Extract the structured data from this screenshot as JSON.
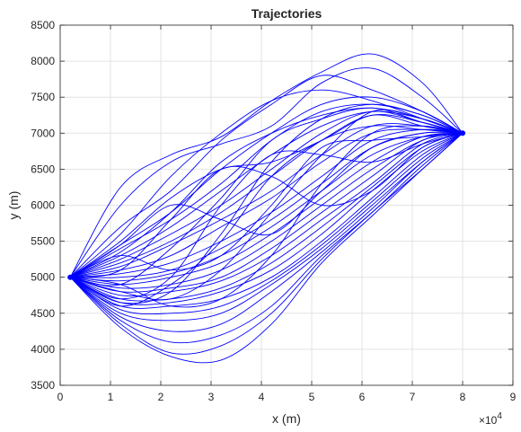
{
  "chart_data": {
    "type": "line",
    "title": "Trajectories",
    "xlabel": "x (m)",
    "ylabel": "y (m)",
    "x_exponent_label": "×10",
    "x_exponent_power": "4",
    "xlim": [
      0,
      90000
    ],
    "ylim": [
      3500,
      8500
    ],
    "x_ticks": [
      0,
      10000,
      20000,
      30000,
      40000,
      50000,
      60000,
      70000,
      80000,
      90000
    ],
    "x_tick_labels": [
      "0",
      "1",
      "2",
      "3",
      "4",
      "5",
      "6",
      "7",
      "8",
      "9"
    ],
    "y_ticks": [
      3500,
      4000,
      4500,
      5000,
      5500,
      6000,
      6500,
      7000,
      7500,
      8000,
      8500
    ],
    "y_tick_labels": [
      "3500",
      "4000",
      "4500",
      "5000",
      "5500",
      "6000",
      "6500",
      "7000",
      "7500",
      "8000",
      "8500"
    ],
    "grid": true,
    "line_color": "#0000ff",
    "start_point": [
      2000,
      5000
    ],
    "end_point": [
      80000,
      7000
    ],
    "series": [
      {
        "x": [
          2000,
          12000,
          22000,
          32000,
          42000,
          52000,
          62000,
          72000,
          80000
        ],
        "y": [
          5000,
          6250,
          6700,
          6950,
          7450,
          7850,
          8100,
          7700,
          7000
        ]
      },
      {
        "x": [
          2000,
          12000,
          22000,
          32000,
          42000,
          52000,
          62000,
          72000,
          80000
        ],
        "y": [
          5000,
          6000,
          6600,
          6850,
          7100,
          7700,
          7900,
          7500,
          7000
        ]
      },
      {
        "x": [
          2000,
          12000,
          22000,
          32000,
          42000,
          52000,
          62000,
          72000,
          80000
        ],
        "y": [
          5000,
          5700,
          6200,
          6900,
          7400,
          7800,
          7600,
          7300,
          7000
        ]
      },
      {
        "x": [
          2000,
          12000,
          22000,
          32000,
          42000,
          52000,
          62000,
          72000,
          80000
        ],
        "y": [
          5000,
          5600,
          6400,
          7000,
          7450,
          7600,
          7450,
          7200,
          7000
        ]
      },
      {
        "x": [
          2000,
          12000,
          22000,
          32000,
          42000,
          52000,
          62000,
          72000,
          80000
        ],
        "y": [
          5000,
          5450,
          5900,
          6500,
          7000,
          7400,
          7500,
          7300,
          7000
        ]
      },
      {
        "x": [
          2000,
          12000,
          22000,
          32000,
          42000,
          52000,
          62000,
          72000,
          80000
        ],
        "y": [
          5000,
          5400,
          5800,
          6300,
          6900,
          7300,
          7400,
          7250,
          7000
        ]
      },
      {
        "x": [
          2000,
          12000,
          22000,
          32000,
          42000,
          52000,
          62000,
          72000,
          80000
        ],
        "y": [
          5000,
          5350,
          5900,
          6600,
          7000,
          7250,
          7350,
          7200,
          7000
        ]
      },
      {
        "x": [
          2000,
          12000,
          22000,
          32000,
          42000,
          52000,
          62000,
          72000,
          80000
        ],
        "y": [
          5000,
          5300,
          5700,
          6200,
          6700,
          7100,
          7300,
          7200,
          7000
        ]
      },
      {
        "x": [
          2000,
          12000,
          22000,
          32000,
          42000,
          52000,
          62000,
          72000,
          80000
        ],
        "y": [
          5000,
          5250,
          5600,
          6000,
          6500,
          7000,
          7300,
          7150,
          7000
        ]
      },
      {
        "x": [
          2000,
          12000,
          22000,
          32000,
          42000,
          52000,
          62000,
          72000,
          80000
        ],
        "y": [
          5000,
          5200,
          5500,
          5900,
          6400,
          6900,
          7250,
          7100,
          7000
        ]
      },
      {
        "x": [
          2000,
          12000,
          22000,
          32000,
          42000,
          52000,
          62000,
          72000,
          80000
        ],
        "y": [
          5000,
          5150,
          5450,
          5800,
          6200,
          6700,
          7100,
          7100,
          7000
        ]
      },
      {
        "x": [
          2000,
          12000,
          22000,
          32000,
          42000,
          52000,
          62000,
          72000,
          80000
        ],
        "y": [
          5000,
          5100,
          5300,
          5700,
          6100,
          6600,
          7000,
          7050,
          7000
        ]
      },
      {
        "x": [
          2000,
          12000,
          22000,
          32000,
          42000,
          52000,
          62000,
          72000,
          80000
        ],
        "y": [
          5000,
          5050,
          5200,
          5500,
          5900,
          6400,
          6900,
          7050,
          7000
        ]
      },
      {
        "x": [
          2000,
          12000,
          22000,
          32000,
          42000,
          52000,
          62000,
          72000,
          80000
        ],
        "y": [
          5000,
          5000,
          5100,
          5400,
          5800,
          6300,
          6800,
          7000,
          7000
        ]
      },
      {
        "x": [
          2000,
          12000,
          22000,
          32000,
          42000,
          52000,
          62000,
          72000,
          80000
        ],
        "y": [
          5000,
          4950,
          5050,
          5300,
          5700,
          6200,
          6700,
          6950,
          7000
        ]
      },
      {
        "x": [
          2000,
          12000,
          22000,
          32000,
          42000,
          52000,
          62000,
          72000,
          80000
        ],
        "y": [
          5000,
          4900,
          5000,
          5200,
          5600,
          6100,
          6600,
          6950,
          7000
        ]
      },
      {
        "x": [
          2000,
          12000,
          22000,
          32000,
          42000,
          52000,
          62000,
          72000,
          80000
        ],
        "y": [
          5000,
          4850,
          4900,
          5100,
          5500,
          6000,
          6500,
          6900,
          7000
        ]
      },
      {
        "x": [
          2000,
          12000,
          22000,
          32000,
          42000,
          52000,
          62000,
          72000,
          80000
        ],
        "y": [
          5000,
          4800,
          4850,
          5000,
          5400,
          5900,
          6400,
          6900,
          7000
        ]
      },
      {
        "x": [
          2000,
          12000,
          22000,
          32000,
          42000,
          52000,
          62000,
          72000,
          80000
        ],
        "y": [
          5000,
          4750,
          4800,
          4950,
          5300,
          5800,
          6300,
          6850,
          7000
        ]
      },
      {
        "x": [
          2000,
          12000,
          22000,
          32000,
          42000,
          52000,
          62000,
          72000,
          80000
        ],
        "y": [
          5000,
          4700,
          4700,
          4850,
          5200,
          5700,
          6250,
          6800,
          7000
        ]
      },
      {
        "x": [
          2000,
          12000,
          22000,
          32000,
          42000,
          52000,
          62000,
          72000,
          80000
        ],
        "y": [
          5000,
          4650,
          4650,
          4800,
          5100,
          5600,
          6200,
          6750,
          7000
        ]
      },
      {
        "x": [
          2000,
          12000,
          22000,
          32000,
          42000,
          52000,
          62000,
          72000,
          80000
        ],
        "y": [
          5000,
          4600,
          4600,
          4700,
          5000,
          5500,
          6100,
          6700,
          7000
        ]
      },
      {
        "x": [
          2000,
          12000,
          22000,
          32000,
          42000,
          52000,
          62000,
          72000,
          80000
        ],
        "y": [
          5000,
          4550,
          4500,
          4600,
          4950,
          5450,
          6050,
          6650,
          7000
        ]
      },
      {
        "x": [
          2000,
          12000,
          22000,
          32000,
          42000,
          52000,
          62000,
          72000,
          80000
        ],
        "y": [
          5000,
          4500,
          4400,
          4500,
          4900,
          5400,
          6000,
          6600,
          7000
        ]
      },
      {
        "x": [
          2000,
          12000,
          22000,
          32000,
          42000,
          52000,
          62000,
          72000,
          80000
        ],
        "y": [
          5000,
          4450,
          4250,
          4350,
          4800,
          5350,
          5950,
          6600,
          7000
        ]
      },
      {
        "x": [
          2000,
          12000,
          22000,
          32000,
          42000,
          52000,
          62000,
          72000,
          80000
        ],
        "y": [
          5000,
          4400,
          4100,
          4200,
          4600,
          5300,
          5900,
          6550,
          7000
        ]
      },
      {
        "x": [
          2000,
          12000,
          22000,
          32000,
          42000,
          52000,
          62000,
          72000,
          80000
        ],
        "y": [
          5000,
          4350,
          3950,
          4050,
          4500,
          5250,
          5900,
          6500,
          7000
        ]
      },
      {
        "x": [
          2000,
          12000,
          22000,
          32000,
          42000,
          52000,
          62000,
          72000,
          80000
        ],
        "y": [
          5000,
          4300,
          3900,
          3850,
          4350,
          5200,
          5850,
          6500,
          7000
        ]
      },
      {
        "x": [
          2000,
          12000,
          22000,
          32000,
          42000,
          52000,
          62000,
          72000,
          80000
        ],
        "y": [
          5000,
          4600,
          4900,
          5500,
          6400,
          6900,
          7100,
          7050,
          7000
        ]
      },
      {
        "x": [
          2000,
          12000,
          22000,
          32000,
          42000,
          52000,
          62000,
          72000,
          80000
        ],
        "y": [
          5000,
          4900,
          5400,
          6100,
          6900,
          7200,
          7350,
          7150,
          7000
        ]
      },
      {
        "x": [
          2000,
          12000,
          22000,
          32000,
          42000,
          52000,
          62000,
          72000,
          80000
        ],
        "y": [
          5000,
          5500,
          6100,
          6500,
          6600,
          6900,
          7250,
          7150,
          7000
        ]
      },
      {
        "x": [
          2000,
          12000,
          22000,
          32000,
          42000,
          52000,
          62000,
          72000,
          80000
        ],
        "y": [
          5000,
          4800,
          4700,
          5100,
          5900,
          6700,
          7300,
          7200,
          7000
        ]
      },
      {
        "x": [
          2000,
          12000,
          22000,
          32000,
          42000,
          52000,
          62000,
          72000,
          80000
        ],
        "y": [
          5000,
          5300,
          5100,
          5300,
          6000,
          6800,
          6900,
          6950,
          7000
        ]
      },
      {
        "x": [
          2000,
          12000,
          22000,
          32000,
          42000,
          52000,
          62000,
          72000,
          80000
        ],
        "y": [
          5000,
          4700,
          5000,
          6000,
          6700,
          6700,
          6600,
          6850,
          7000
        ]
      },
      {
        "x": [
          2000,
          12000,
          22000,
          32000,
          42000,
          52000,
          62000,
          72000,
          80000
        ],
        "y": [
          5000,
          5100,
          5800,
          6500,
          6400,
          6000,
          6200,
          6800,
          7000
        ]
      },
      {
        "x": [
          2000,
          12000,
          22000,
          32000,
          42000,
          52000,
          62000,
          72000,
          80000
        ],
        "y": [
          5000,
          4650,
          4800,
          5600,
          6600,
          7200,
          7400,
          7250,
          7000
        ]
      },
      {
        "x": [
          2000,
          12000,
          22000,
          32000,
          42000,
          52000,
          62000,
          72000,
          80000
        ],
        "y": [
          5000,
          5450,
          6000,
          5800,
          5600,
          6200,
          6800,
          7000,
          7000
        ]
      },
      {
        "x": [
          2000,
          12000,
          22000,
          32000,
          42000,
          52000,
          62000,
          72000,
          80000
        ],
        "y": [
          5000,
          4900,
          4600,
          4700,
          5300,
          6300,
          7000,
          7100,
          7000
        ]
      }
    ]
  }
}
